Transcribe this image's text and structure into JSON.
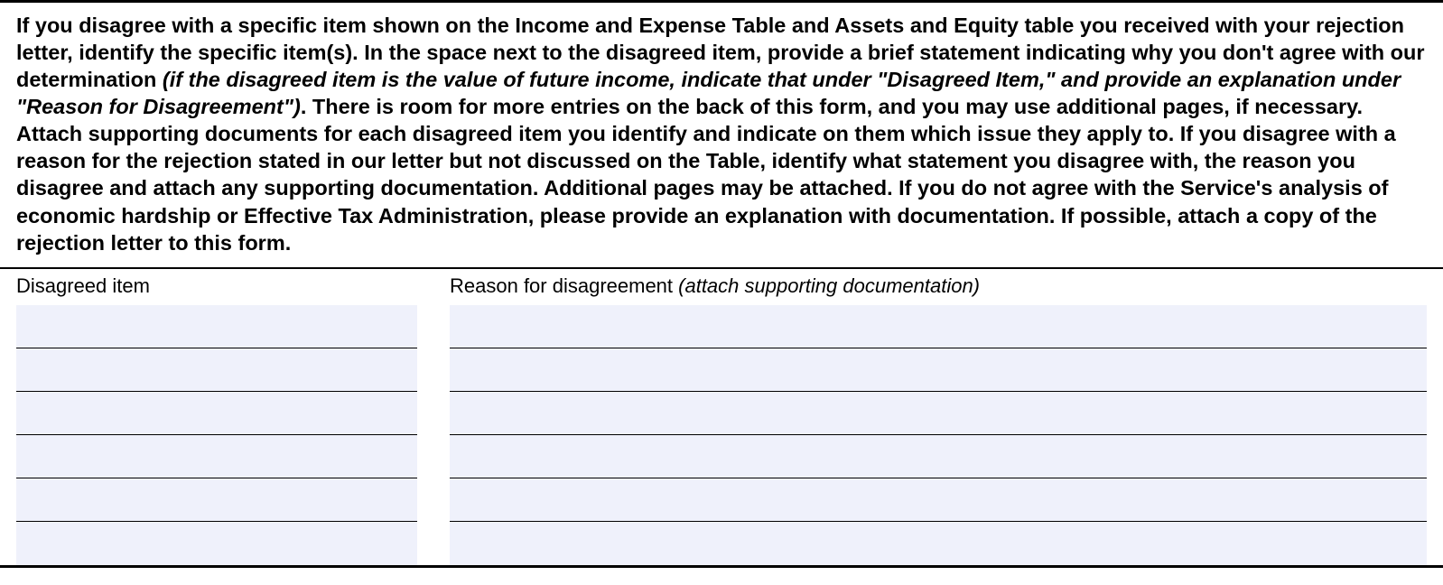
{
  "instructions": {
    "part1": "If you disagree with a specific item shown on the Income and Expense Table and Assets and Equity table you received with your rejection letter, identify the specific item(s). In the space next to the disagreed item, provide a brief statement indicating why you don't agree with our determination ",
    "italic": "(if the disagreed item is the value of future income, indicate that under \"Disagreed Item,\" and provide an explanation under \"Reason for Disagreement\")",
    "part2": ". There is room for more entries on the back of this form, and you may use additional pages, if necessary. Attach supporting documents for each disagreed item you identify and indicate on them which issue they apply to. If you disagree with a reason for the rejection stated in our letter but not discussed on the Table, identify what statement you disagree with, the reason you disagree and attach any supporting documentation. Additional pages may be attached. If you do not agree with the Service's analysis of economic hardship or Effective Tax Administration, please provide an explanation with documentation. If possible, attach a copy of the rejection letter to this form."
  },
  "columns": {
    "left_label": "Disagreed item",
    "right_label": "Reason for disagreement ",
    "right_label_italic": "(attach supporting documentation)"
  },
  "rows": {
    "count": 6,
    "left": [
      "",
      "",
      "",
      "",
      "",
      ""
    ],
    "right": [
      "",
      "",
      "",
      "",
      "",
      ""
    ]
  },
  "style": {
    "input_bg": "#eff1fb",
    "border_color": "#000000",
    "page_bg": "#ffffff"
  }
}
